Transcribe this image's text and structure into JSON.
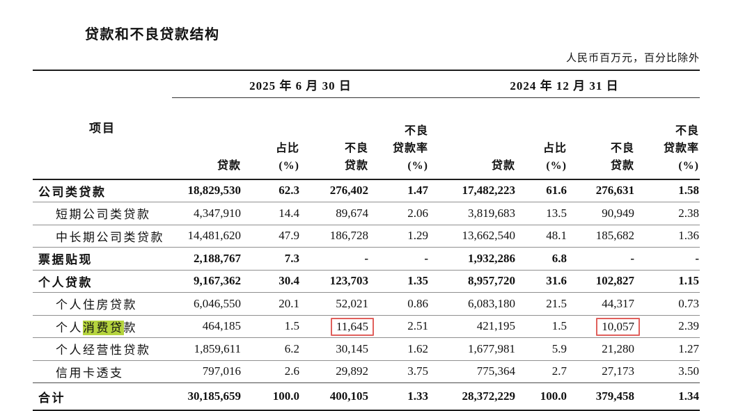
{
  "page": {
    "title": "贷款和不良贷款结构",
    "unit_note": "人民币百万元，百分比除外"
  },
  "table": {
    "item_header": "项目",
    "groups": [
      {
        "date": "2025 年 6 月 30 日"
      },
      {
        "date": "2024 年 12 月 31 日"
      }
    ],
    "col_headers": [
      [
        "贷款"
      ],
      [
        "占比",
        "(%)"
      ],
      [
        "不良",
        "贷款"
      ],
      [
        "不良",
        "贷款率",
        "(%)"
      ],
      [
        "贷款"
      ],
      [
        "占比",
        "(%)"
      ],
      [
        "不良",
        "贷款"
      ],
      [
        "不良",
        "贷款率",
        "(%)"
      ]
    ],
    "rows": [
      {
        "label": "公司类贷款",
        "bold": true,
        "indent": false,
        "cols": [
          "18,829,530",
          "62.3",
          "276,402",
          "1.47",
          "17,482,223",
          "61.6",
          "276,631",
          "1.58"
        ]
      },
      {
        "label": "短期公司类贷款",
        "bold": false,
        "indent": true,
        "cols": [
          "4,347,910",
          "14.4",
          "89,674",
          "2.06",
          "3,819,683",
          "13.5",
          "90,949",
          "2.38"
        ]
      },
      {
        "label": "中长期公司类贷款",
        "bold": false,
        "indent": true,
        "cols": [
          "14,481,620",
          "47.9",
          "186,728",
          "1.29",
          "13,662,540",
          "48.1",
          "185,682",
          "1.36"
        ]
      },
      {
        "label": "票据贴现",
        "bold": true,
        "indent": false,
        "cols": [
          "2,188,767",
          "7.3",
          "-",
          "-",
          "1,932,286",
          "6.8",
          "-",
          "-"
        ]
      },
      {
        "label": "个人贷款",
        "bold": true,
        "indent": false,
        "cols": [
          "9,167,362",
          "30.4",
          "123,703",
          "1.35",
          "8,957,720",
          "31.6",
          "102,827",
          "1.15"
        ]
      },
      {
        "label": "个人住房贷款",
        "bold": false,
        "indent": true,
        "cols": [
          "6,046,550",
          "20.1",
          "52,021",
          "0.86",
          "6,083,180",
          "21.5",
          "44,317",
          "0.73"
        ]
      },
      {
        "label_parts": [
          {
            "t": "个人"
          },
          {
            "t": "消费贷",
            "hl": true
          },
          {
            "t": "款"
          }
        ],
        "bold": false,
        "indent": true,
        "boxed": [
          2,
          6
        ],
        "cols": [
          "464,185",
          "1.5",
          "11,645",
          "2.51",
          "421,195",
          "1.5",
          "10,057",
          "2.39"
        ]
      },
      {
        "label": "个人经营性贷款",
        "bold": false,
        "indent": true,
        "cols": [
          "1,859,611",
          "6.2",
          "30,145",
          "1.62",
          "1,677,981",
          "5.9",
          "21,280",
          "1.27"
        ]
      },
      {
        "label": "信用卡透支",
        "bold": false,
        "indent": true,
        "cols": [
          "797,016",
          "2.6",
          "29,892",
          "3.75",
          "775,364",
          "2.7",
          "27,173",
          "3.50"
        ]
      },
      {
        "label": "合计",
        "bold": true,
        "indent": false,
        "total": true,
        "cols": [
          "30,185,659",
          "100.0",
          "400,105",
          "1.33",
          "28,372,229",
          "100.0",
          "379,458",
          "1.34"
        ]
      }
    ],
    "annotations": {
      "highlight_color": "#b5d43e",
      "highlighted_text": "消费贷",
      "box_color": "#e0605c",
      "boxed_values": [
        "11,645",
        "10,057"
      ]
    }
  }
}
